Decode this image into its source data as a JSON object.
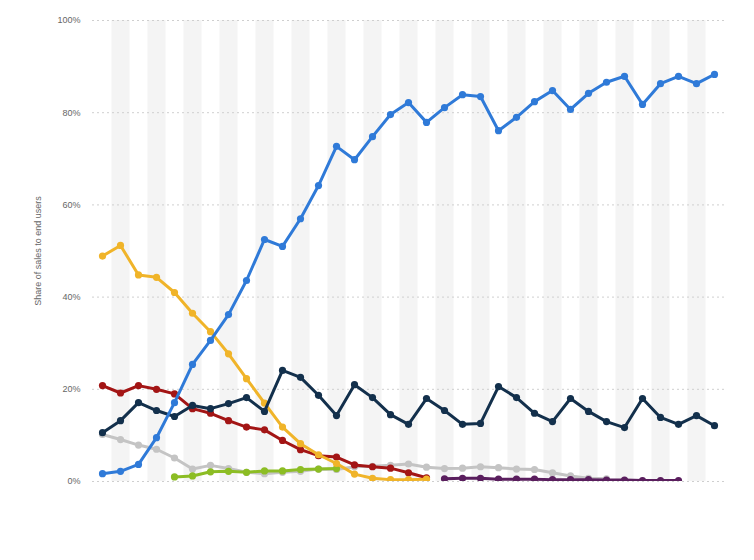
{
  "chart_data": {
    "type": "line",
    "y_label": "Share of sales to end users",
    "categories": [
      null,
      null,
      null,
      null,
      null,
      null,
      null,
      null,
      null,
      null,
      null,
      null,
      null,
      null,
      null,
      null,
      null,
      null,
      null,
      null,
      null,
      null,
      null,
      null,
      null,
      null,
      null,
      null,
      null,
      null,
      null,
      null,
      null,
      null,
      null
    ],
    "ylim": [
      0,
      100
    ],
    "yticks": [
      {
        "value": 0,
        "label": "0%"
      },
      {
        "value": 20,
        "label": "20%"
      },
      {
        "value": 40,
        "label": "40%"
      },
      {
        "value": 60,
        "label": "60%"
      },
      {
        "value": 80,
        "label": "80%"
      },
      {
        "value": 100,
        "label": "100%"
      }
    ],
    "grid": true,
    "tick_labels": "y",
    "marker": "circle",
    "series": [
      {
        "color": "#c4c4c4",
        "values": [
          10.2,
          9.1,
          7.9,
          7.0,
          5.1,
          2.7,
          3.5,
          2.8,
          2.0,
          1.7,
          2.0,
          2.2,
          2.7,
          2.6,
          3.2,
          3.3,
          3.5,
          3.8,
          3.1,
          2.8,
          2.9,
          3.2,
          3.0,
          2.7,
          2.6,
          1.9,
          1.2,
          0.7,
          0.6,
          null,
          null,
          null,
          null,
          null,
          null
        ]
      },
      {
        "color": "#8cbd24",
        "values": [
          null,
          null,
          null,
          null,
          1.0,
          1.2,
          2.1,
          2.2,
          2.0,
          2.3,
          2.3,
          2.6,
          2.7,
          2.8,
          null,
          null,
          null,
          null,
          null,
          null,
          null,
          null,
          null,
          null,
          null,
          null,
          null,
          null,
          null,
          null,
          null,
          null,
          null,
          null,
          null
        ]
      },
      {
        "color": "#5a1e5e",
        "values": [
          null,
          null,
          null,
          null,
          null,
          null,
          null,
          null,
          null,
          null,
          null,
          null,
          null,
          null,
          null,
          null,
          null,
          null,
          null,
          0.6,
          0.7,
          0.7,
          0.5,
          0.5,
          0.5,
          0.4,
          0.4,
          0.4,
          0.3,
          0.3,
          0.2,
          0.2,
          0.2,
          null,
          null
        ]
      },
      {
        "color": "#a31515",
        "values": [
          20.8,
          19.2,
          20.8,
          20.0,
          19.0,
          15.8,
          14.8,
          13.2,
          11.8,
          11.2,
          8.9,
          6.9,
          5.6,
          5.3,
          3.6,
          3.2,
          2.9,
          1.9,
          0.8,
          null,
          null,
          null,
          null,
          null,
          null,
          null,
          null,
          null,
          null,
          null,
          null,
          null,
          null,
          null,
          null
        ]
      },
      {
        "color": "#f0b429",
        "values": [
          48.9,
          51.2,
          44.8,
          44.3,
          41.0,
          36.5,
          32.5,
          27.7,
          22.3,
          17.0,
          11.8,
          8.2,
          5.8,
          3.9,
          1.6,
          0.7,
          0.4,
          0.4,
          0.5,
          null,
          null,
          null,
          null,
          null,
          null,
          null,
          null,
          null,
          null,
          null,
          null,
          null,
          null,
          null,
          null
        ]
      },
      {
        "color": "#13304c",
        "values": [
          10.6,
          13.2,
          17.1,
          15.4,
          14.1,
          16.5,
          15.8,
          16.9,
          18.2,
          15.2,
          24.1,
          22.6,
          18.7,
          14.3,
          21.0,
          18.2,
          14.5,
          12.4,
          18.0,
          15.4,
          12.4,
          12.6,
          20.6,
          18.2,
          14.8,
          13.0,
          18.0,
          15.2,
          13.0,
          11.7,
          18.0,
          13.9,
          12.4,
          14.3,
          12.1
        ]
      },
      {
        "color": "#2f7ad8",
        "values": [
          1.7,
          2.2,
          3.7,
          9.5,
          17.1,
          25.4,
          30.6,
          36.2,
          43.6,
          52.5,
          51.0,
          57.0,
          64.2,
          72.7,
          69.8,
          74.8,
          79.6,
          82.2,
          77.9,
          81.1,
          83.9,
          83.5,
          76.1,
          79.0,
          82.4,
          84.8,
          80.7,
          84.2,
          86.6,
          87.9,
          81.8,
          86.3,
          87.9,
          86.3,
          88.3
        ]
      }
    ]
  }
}
